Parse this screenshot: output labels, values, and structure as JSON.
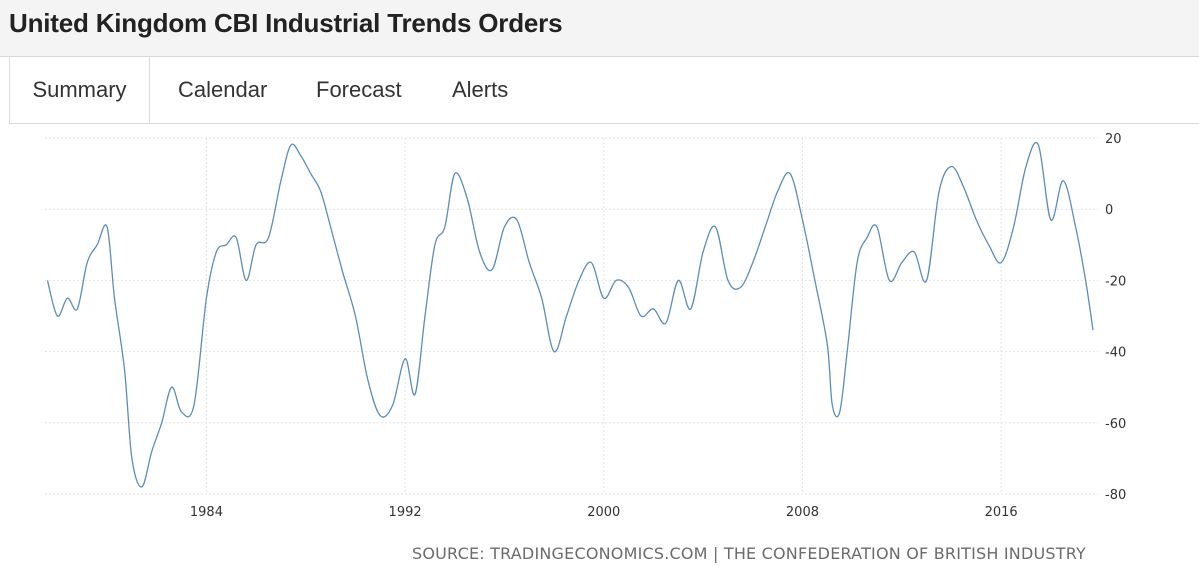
{
  "page": {
    "title": "United Kingdom CBI Industrial Trends Orders"
  },
  "tabs": [
    {
      "label": "Summary",
      "active": true
    },
    {
      "label": "Calendar",
      "active": false
    },
    {
      "label": "Forecast",
      "active": false
    },
    {
      "label": "Alerts",
      "active": false
    }
  ],
  "source": "SOURCE: TRADINGECONOMICS.COM | THE CONFEDERATION OF BRITISH INDUSTRY",
  "colors": {
    "line": "#5b8db8",
    "grid": "#e3e3e3",
    "tick_text": "#333333"
  },
  "chart_data": {
    "type": "line",
    "title": "",
    "xlabel": "",
    "ylabel": "",
    "xlim": [
      1977.5,
      2019.9
    ],
    "ylim": [
      -80,
      20
    ],
    "xticks": [
      1984,
      1992,
      2000,
      2008,
      2016
    ],
    "yticks": [
      20,
      0,
      -20,
      -40,
      -60,
      -80
    ],
    "y_axis_side": "right",
    "grid": true,
    "legend": "none",
    "series": [
      {
        "name": "",
        "x": [
          1977.6,
          1978.0,
          1978.4,
          1978.8,
          1979.2,
          1979.6,
          1980.0,
          1980.3,
          1980.7,
          1981.0,
          1981.4,
          1981.8,
          1982.2,
          1982.6,
          1983.0,
          1983.5,
          1984.0,
          1984.4,
          1984.8,
          1985.2,
          1985.6,
          1986.0,
          1986.5,
          1987.0,
          1987.4,
          1987.8,
          1988.2,
          1988.6,
          1989.0,
          1989.5,
          1990.0,
          1990.5,
          1991.0,
          1991.5,
          1992.0,
          1992.4,
          1992.8,
          1993.2,
          1993.6,
          1994.0,
          1994.5,
          1995.0,
          1995.5,
          1996.0,
          1996.5,
          1997.0,
          1997.5,
          1998.0,
          1998.5,
          1999.0,
          1999.5,
          2000.0,
          2000.5,
          2001.0,
          2001.5,
          2002.0,
          2002.5,
          2003.0,
          2003.5,
          2004.0,
          2004.5,
          2005.0,
          2005.5,
          2006.0,
          2006.5,
          2007.0,
          2007.5,
          2008.0,
          2008.5,
          2009.0,
          2009.2,
          2009.5,
          2009.8,
          2010.2,
          2010.6,
          2011.0,
          2011.5,
          2012.0,
          2012.5,
          2013.0,
          2013.5,
          2014.0,
          2014.5,
          2015.0,
          2015.5,
          2016.0,
          2016.5,
          2017.0,
          2017.5,
          2018.0,
          2018.5,
          2019.0,
          2019.4,
          2019.7
        ],
        "values": [
          -20,
          -30,
          -25,
          -28,
          -15,
          -10,
          -5,
          -25,
          -45,
          -70,
          -78,
          -68,
          -60,
          -50,
          -57,
          -55,
          -25,
          -12,
          -10,
          -8,
          -20,
          -10,
          -8,
          8,
          18,
          15,
          10,
          5,
          -5,
          -18,
          -30,
          -48,
          -58,
          -55,
          -42,
          -52,
          -30,
          -10,
          -5,
          10,
          3,
          -12,
          -17,
          -5,
          -3,
          -15,
          -25,
          -40,
          -30,
          -20,
          -15,
          -25,
          -20,
          -22,
          -30,
          -28,
          -32,
          -20,
          -28,
          -12,
          -5,
          -20,
          -22,
          -15,
          -5,
          5,
          10,
          -3,
          -20,
          -38,
          -55,
          -57,
          -40,
          -15,
          -8,
          -5,
          -20,
          -15,
          -12,
          -20,
          5,
          12,
          6,
          -3,
          -10,
          -15,
          -5,
          12,
          18,
          -3,
          8,
          -5,
          -20,
          -34
        ]
      }
    ]
  }
}
